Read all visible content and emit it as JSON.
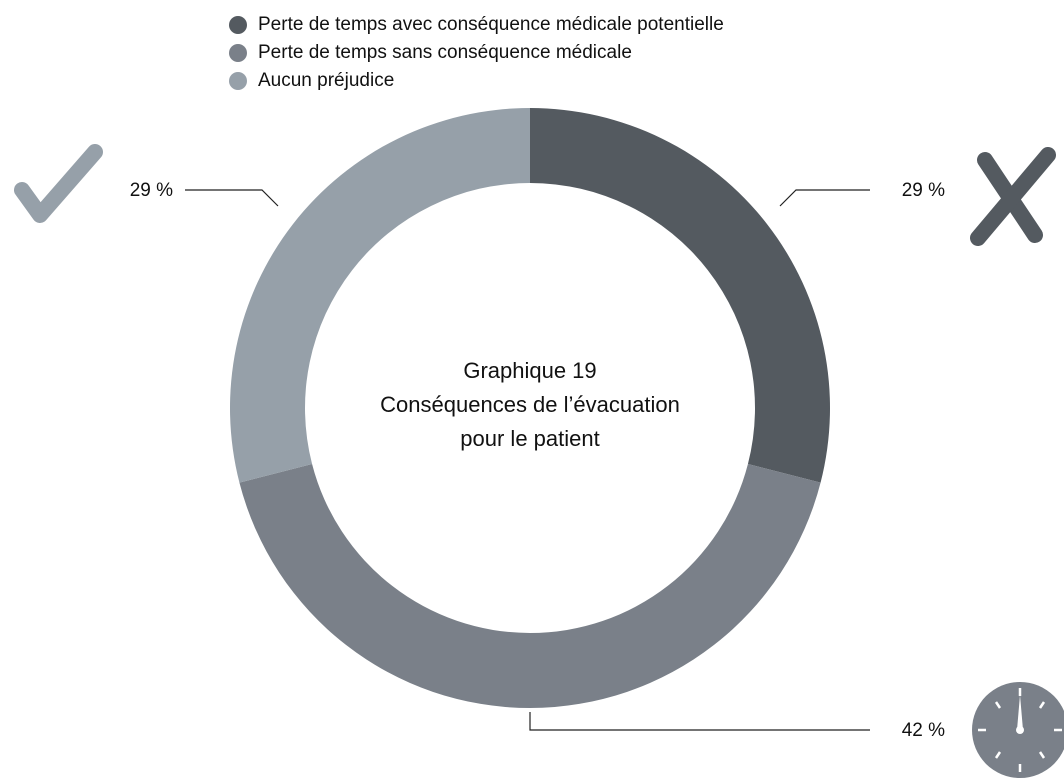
{
  "chart_data": {
    "type": "donut",
    "title": "Graphique 19",
    "subtitle": [
      "Conséquences de l’évacuation",
      "pour le patient"
    ],
    "categories": [
      "Perte de temps avec conséquence médicale potentielle",
      "Perte de temps sans conséquence médicale",
      "Aucun préjudice"
    ],
    "values": [
      29,
      42,
      29
    ],
    "value_labels": [
      "29 %",
      "42 %",
      "29 %"
    ],
    "colors": [
      "#545a60",
      "#7a8089",
      "#96a0a9"
    ],
    "legend": "top-left"
  }
}
